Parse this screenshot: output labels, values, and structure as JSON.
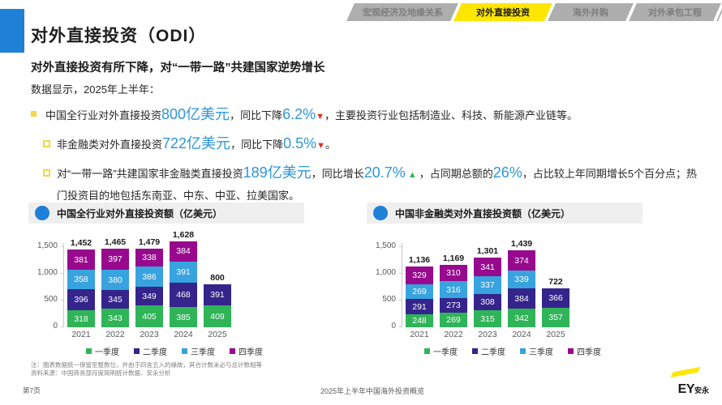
{
  "palette": {
    "accent_blue": "#1f80d8",
    "number_blue": "#2e96d8",
    "ey_yellow": "#FFE600",
    "tab_gray": "#aeaeae",
    "down_red": "#e0301e",
    "up_green": "#2db757"
  },
  "tabs": [
    {
      "label": "宏观经济及地缘关系",
      "active": false
    },
    {
      "label": "对外直接投资",
      "active": true
    },
    {
      "label": "海外并购",
      "active": false
    },
    {
      "label": "对外承包工程",
      "active": false
    }
  ],
  "page": {
    "title": "对外直接投资（ODI）",
    "subtitle": "对外直接投资有所下降，对“一带一路”共建国家逆势增长",
    "intro": "数据显示，2025年上半年："
  },
  "bullets": {
    "b1": {
      "parts": [
        "中国全行业对外直接投资",
        "800亿美元",
        "，同比下降",
        "6.2%",
        "▼",
        "，主要投资行业包括制造业、科技、新能源产业链等。"
      ]
    },
    "b2": {
      "parts": [
        "非金融类对外直接投资",
        "722亿美元",
        "，同比下降",
        "0.5%",
        "▼",
        "。"
      ]
    },
    "b3": {
      "parts": [
        "对“一带一路”共建国家非金融类直接投资",
        "189亿美元",
        "，同比增长",
        "20.7%",
        " ▲ ",
        "，占同期总额的",
        "26%",
        "，占比较上年同期增长5个百分点；热门投资目的地包括东南亚、中东、中亚、拉美国家。"
      ]
    }
  },
  "chart_data": [
    {
      "type": "stacked-bar",
      "title": "中国全行业对外直接投资额（亿美元）",
      "categories": [
        "2021",
        "2022",
        "2023",
        "2024",
        "2025"
      ],
      "series": [
        {
          "name": "一季度",
          "color": "#2fb457",
          "values": [
            318,
            343,
            405,
            385,
            409
          ]
        },
        {
          "name": "二季度",
          "color": "#35248b",
          "values": [
            396,
            345,
            349,
            468,
            391
          ]
        },
        {
          "name": "三季度",
          "color": "#38a3de",
          "values": [
            358,
            380,
            386,
            391,
            null
          ]
        },
        {
          "name": "四季度",
          "color": "#970a8e",
          "values": [
            381,
            397,
            338,
            384,
            null
          ]
        }
      ],
      "totals": [
        "1,452",
        "1,465",
        "1,479",
        "1,628",
        "800"
      ],
      "yticks": [
        "0",
        "500",
        "1,000",
        "1,500"
      ],
      "ylim": [
        0,
        1500
      ],
      "grid": false,
      "legend_position": "bottom"
    },
    {
      "type": "stacked-bar",
      "title": "中国非金融类对外直接投资额（亿美元）",
      "categories": [
        "2021",
        "2022",
        "2023",
        "2024",
        "2025"
      ],
      "series": [
        {
          "name": "一季度",
          "color": "#2fb457",
          "values": [
            248,
            269,
            315,
            342,
            357
          ]
        },
        {
          "name": "二季度",
          "color": "#35248b",
          "values": [
            291,
            273,
            308,
            384,
            366
          ]
        },
        {
          "name": "三季度",
          "color": "#38a3de",
          "values": [
            269,
            316,
            337,
            339,
            null
          ]
        },
        {
          "name": "四季度",
          "color": "#970a8e",
          "values": [
            329,
            310,
            341,
            374,
            null
          ]
        }
      ],
      "totals": [
        "1,136",
        "1,169",
        "1,301",
        "1,439",
        "722"
      ],
      "yticks": [
        "0",
        "500",
        "1,000",
        "1,500"
      ],
      "ylim": [
        0,
        1500
      ],
      "grid": false,
      "legend_position": "bottom"
    }
  ],
  "footnote": {
    "line1": "注：图表数据统一保留至整数位，并由于四舍五入的缘故，其合计数未必与总计数相等",
    "line2": "资料来源：中国商务部月度简明统计数据、安永分析"
  },
  "footer": {
    "page_number": "第7页",
    "doc_title": "2025年上半年中国海外投资概览",
    "logo_ey": "EY",
    "logo_cn": "安永"
  }
}
